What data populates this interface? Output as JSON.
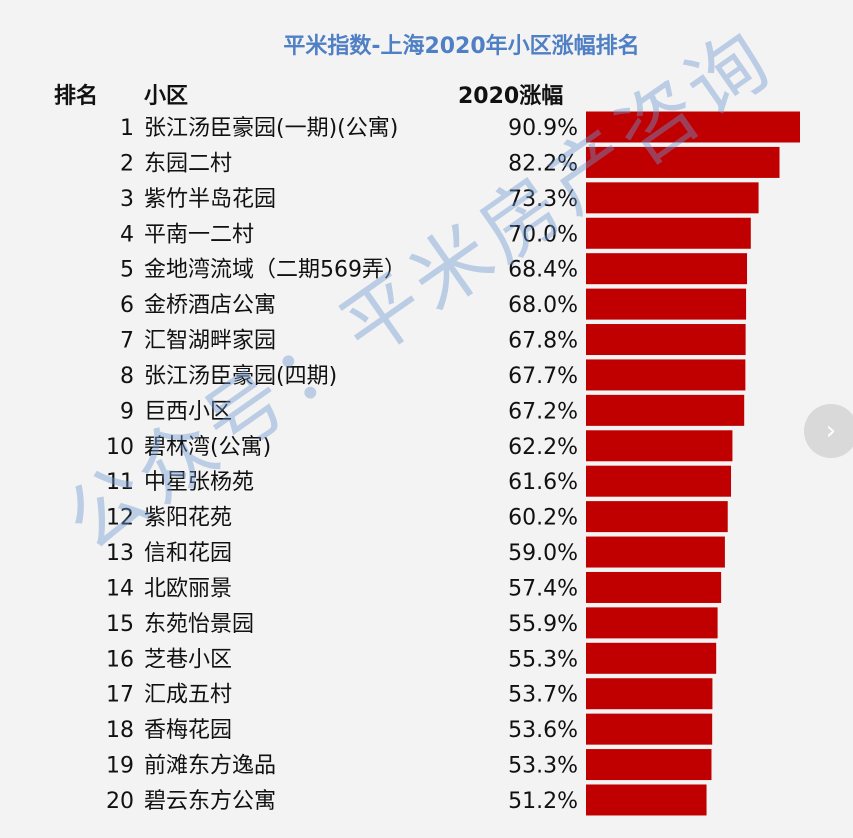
{
  "chart_data": {
    "type": "bar",
    "orientation": "horizontal",
    "title": "平米指数-上海2020年小区涨幅排名",
    "columns": {
      "rank": "排名",
      "name": "小区",
      "value": "2020涨幅"
    },
    "ranks": [
      1,
      2,
      3,
      4,
      5,
      6,
      7,
      8,
      9,
      10,
      11,
      12,
      13,
      14,
      15,
      16,
      17,
      18,
      19,
      20
    ],
    "categories": [
      "张江汤臣豪园(一期)(公寓)",
      "东园二村",
      "紫竹半岛花园",
      "平南一二村",
      "金地湾流域（二期569弄）",
      "金桥酒店公寓",
      "汇智湖畔家园",
      "张江汤臣豪园(四期)",
      "巨西小区",
      "碧林湾(公寓)",
      "中星张杨苑",
      "紫阳花苑",
      "信和花园",
      "北欧丽景",
      "东苑怡景园",
      "芝巷小区",
      "汇成五村",
      "香梅花园",
      "前滩东方逸品",
      "碧云东方公寓"
    ],
    "values": [
      90.9,
      82.2,
      73.3,
      70.0,
      68.4,
      68.0,
      67.8,
      67.7,
      67.2,
      62.2,
      61.6,
      60.2,
      59.0,
      57.4,
      55.9,
      55.3,
      53.7,
      53.6,
      53.3,
      51.2
    ],
    "unit": "%",
    "bar_color": "#c00000",
    "title_color": "#4f7fc4",
    "xlim": [
      0,
      100
    ],
    "grid": false
  },
  "watermark": "公众号：平米房产咨询",
  "nav": {
    "next_icon": "chevron-right-icon"
  }
}
